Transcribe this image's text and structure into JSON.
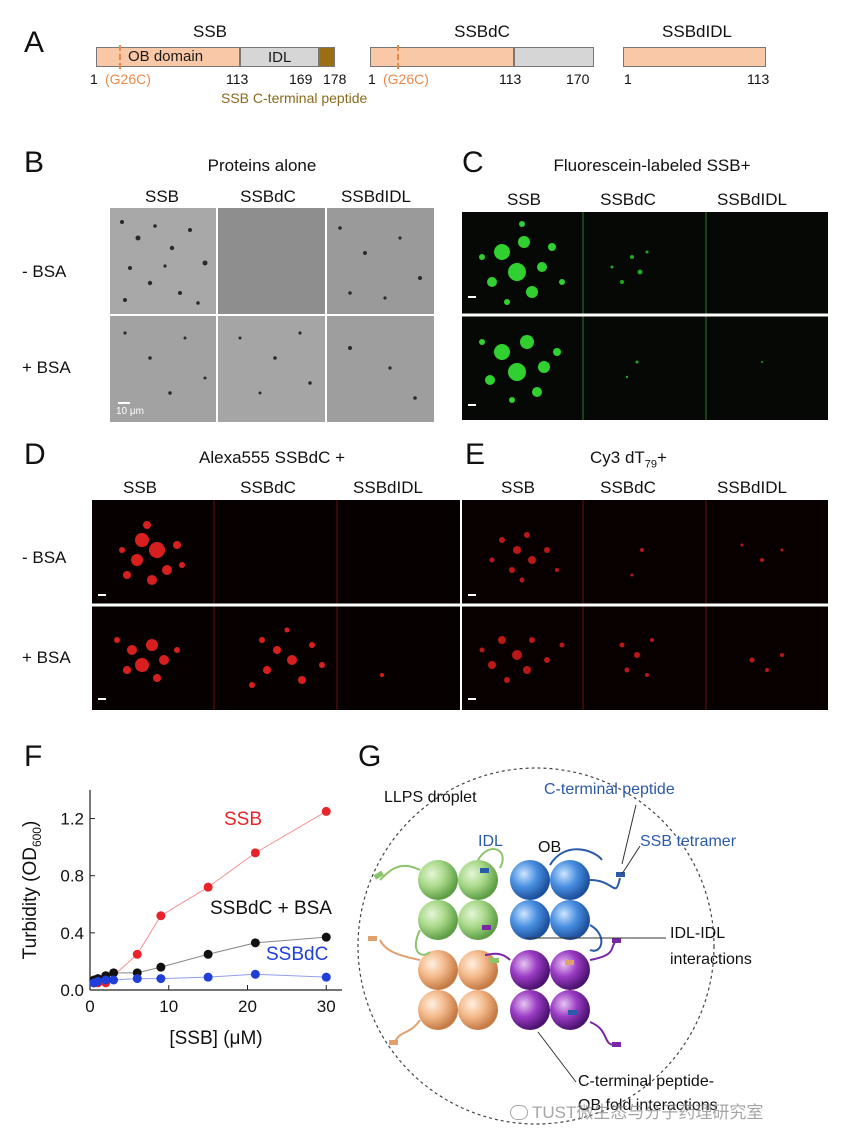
{
  "panels": {
    "A": "A",
    "B": "B",
    "C": "C",
    "D": "D",
    "E": "E",
    "F": "F",
    "G": "G"
  },
  "panel_a": {
    "constructs": [
      {
        "name": "SSB",
        "domains": [
          {
            "label": "OB domain"
          },
          {
            "label": "IDL"
          }
        ],
        "ticks": [
          "1",
          "113",
          "169",
          "178"
        ],
        "mutation": "(G26C)",
        "peptide_label": "SSB C-terminal peptide"
      },
      {
        "name": "SSBdC",
        "ticks": [
          "1",
          "113",
          "170"
        ],
        "mutation": "(G26C)"
      },
      {
        "name": "SSBdIDL",
        "ticks": [
          "1",
          "113"
        ]
      }
    ],
    "colors": {
      "ob": "#f9c8a7",
      "idl": "#d6d6d6",
      "peptide": "#9a6e12",
      "mutation": "#e8894a"
    }
  },
  "panel_b": {
    "title": "Proteins alone",
    "columns": [
      "SSB",
      "SSBdC",
      "SSBdIDL"
    ],
    "rows": [
      "- BSA",
      "+ BSA"
    ],
    "scale": "10 μm"
  },
  "panel_c": {
    "title": "Fluorescein-labeled SSB+",
    "columns": [
      "SSB",
      "SSBdC",
      "SSBdIDL"
    ],
    "scale": "10 μm"
  },
  "panel_d": {
    "title": "Alexa555 SSBdC +",
    "columns": [
      "SSB",
      "SSBdC",
      "SSBdIDL"
    ],
    "rows": [
      "- BSA",
      "+ BSA"
    ],
    "scale": "10 μm"
  },
  "panel_e": {
    "title_main": "Cy3 dT",
    "title_sub": "79",
    "title_end": "+",
    "columns": [
      "SSB",
      "SSBdC",
      "SSBdIDL"
    ],
    "scale": "10 μm"
  },
  "chart_data": {
    "type": "scatter",
    "xlabel": "[SSB] (μM)",
    "ylabel_main": "Turbidity (OD",
    "ylabel_sub": "600",
    "ylabel_end": ")",
    "xlim": [
      0,
      32
    ],
    "ylim": [
      0,
      1.4
    ],
    "xticks": [
      0,
      10,
      20,
      30
    ],
    "yticks": [
      0.0,
      0.4,
      0.8,
      1.2
    ],
    "series": [
      {
        "name": "SSB",
        "color": "#e8242a",
        "x": [
          0.5,
          1,
          2,
          6,
          9,
          15,
          21,
          30
        ],
        "y": [
          0.05,
          0.05,
          0.05,
          0.25,
          0.52,
          0.72,
          0.96,
          1.25
        ]
      },
      {
        "name": "SSBdC + BSA",
        "color": "#111111",
        "x": [
          0.5,
          1,
          2,
          3,
          6,
          9,
          15,
          21,
          30
        ],
        "y": [
          0.07,
          0.08,
          0.1,
          0.12,
          0.12,
          0.16,
          0.25,
          0.33,
          0.37
        ]
      },
      {
        "name": "SSBdC",
        "color": "#1f3fd8",
        "x": [
          0.5,
          1,
          2,
          3,
          6,
          9,
          15,
          21,
          30
        ],
        "y": [
          0.05,
          0.06,
          0.07,
          0.07,
          0.08,
          0.08,
          0.09,
          0.11,
          0.09
        ]
      }
    ]
  },
  "panel_g": {
    "droplet": "LLPS droplet",
    "cterm": "C-terminal peptide",
    "idl": "IDL",
    "ob": "OB",
    "tetramer": "SSB tetramer",
    "idl_idl_1": "IDL-IDL",
    "idl_idl_2": "interactions",
    "cterm_ob_1": "C-terminal peptide-",
    "cterm_ob_2": "OB fold interactions"
  },
  "watermark": "TUST微生态与分子药理研究室"
}
